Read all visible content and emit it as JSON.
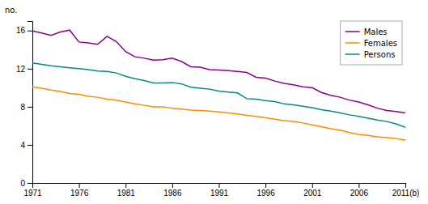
{
  "chart_data": {
    "type": "line",
    "ylabel": "no.",
    "x": [
      1971,
      1972,
      1973,
      1974,
      1975,
      1976,
      1977,
      1978,
      1979,
      1980,
      1981,
      1982,
      1983,
      1984,
      1985,
      1986,
      1987,
      1988,
      1989,
      1990,
      1991,
      1992,
      1993,
      1994,
      1995,
      1996,
      1997,
      1998,
      1999,
      2000,
      2001,
      2002,
      2003,
      2004,
      2005,
      2006,
      2007,
      2008,
      2009,
      2010,
      2011
    ],
    "series": [
      {
        "name": "Males",
        "color": "#8B008B",
        "values": [
          15.95,
          15.75,
          15.5,
          15.85,
          16.05,
          14.8,
          14.7,
          14.55,
          15.4,
          14.85,
          13.8,
          13.25,
          13.1,
          12.9,
          12.95,
          13.1,
          12.75,
          12.2,
          12.15,
          11.9,
          11.85,
          11.8,
          11.7,
          11.6,
          11.1,
          11.0,
          10.7,
          10.45,
          10.3,
          10.1,
          10.0,
          9.5,
          9.2,
          9.0,
          8.7,
          8.5,
          8.2,
          7.85,
          7.6,
          7.5,
          7.35
        ]
      },
      {
        "name": "Females",
        "color": "#FF8C00",
        "values": [
          10.1,
          9.95,
          9.75,
          9.6,
          9.4,
          9.3,
          9.1,
          9.0,
          8.8,
          8.7,
          8.5,
          8.3,
          8.15,
          8.0,
          8.0,
          7.85,
          7.75,
          7.65,
          7.6,
          7.55,
          7.45,
          7.35,
          7.25,
          7.1,
          7.0,
          6.85,
          6.7,
          6.55,
          6.45,
          6.3,
          6.1,
          5.9,
          5.7,
          5.55,
          5.3,
          5.1,
          5.0,
          4.85,
          4.75,
          4.65,
          4.5
        ]
      },
      {
        "name": "Persons",
        "color": "#008B8B",
        "values": [
          12.6,
          12.45,
          12.3,
          12.2,
          12.1,
          12.0,
          11.9,
          11.75,
          11.7,
          11.55,
          11.2,
          10.95,
          10.75,
          10.5,
          10.5,
          10.55,
          10.4,
          10.05,
          9.95,
          9.85,
          9.65,
          9.55,
          9.45,
          8.85,
          8.8,
          8.65,
          8.55,
          8.3,
          8.2,
          8.05,
          7.9,
          7.7,
          7.55,
          7.35,
          7.15,
          7.0,
          6.8,
          6.6,
          6.45,
          6.2,
          5.85
        ]
      }
    ],
    "xlim": [
      1971,
      2011
    ],
    "xticks": [
      1971,
      1976,
      1981,
      1986,
      1991,
      1996,
      2001,
      2006,
      {
        "value": 2011,
        "label": "2011(b)"
      }
    ],
    "ylim": [
      0,
      17
    ],
    "yticks": [
      0,
      4,
      8,
      12,
      16
    ],
    "grid": false,
    "legend": "upper right"
  }
}
